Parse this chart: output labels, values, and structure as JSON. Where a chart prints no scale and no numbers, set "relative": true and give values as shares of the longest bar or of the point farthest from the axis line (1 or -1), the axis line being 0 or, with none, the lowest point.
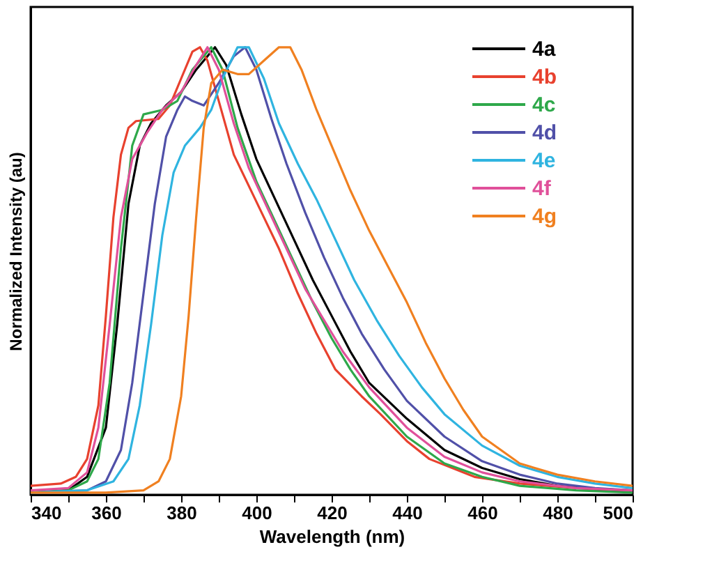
{
  "chart_data": {
    "type": "line",
    "relative": true,
    "xlabel": "Wavelength (nm)",
    "ylabel": "Normalized Intensity (au)",
    "xlim": [
      340,
      500
    ],
    "xticks": [
      340,
      {
        "value": 350,
        "label": null
      },
      360,
      {
        "value": 370,
        "label": null
      },
      380,
      {
        "value": 390,
        "label": null
      },
      400,
      {
        "value": 410,
        "label": null
      },
      420,
      {
        "value": 430,
        "label": null
      },
      440,
      {
        "value": 450,
        "label": null
      },
      460,
      {
        "value": 470,
        "label": null
      },
      480,
      {
        "value": 490,
        "label": null
      },
      500
    ],
    "legend": "top right",
    "marker": "none",
    "line_style": "solid",
    "grid": false,
    "series": [
      {
        "name": "4a",
        "color": "#000000",
        "x": [
          340,
          350,
          355,
          360,
          363,
          366,
          369,
          372,
          376,
          380,
          384,
          389,
          392,
          396,
          400,
          405,
          410,
          415,
          420,
          425,
          430,
          440,
          450,
          460,
          470,
          480,
          490,
          500
        ],
        "values": [
          0.005,
          0.01,
          0.04,
          0.15,
          0.38,
          0.65,
          0.78,
          0.83,
          0.87,
          0.9,
          0.95,
          1.0,
          0.96,
          0.85,
          0.75,
          0.66,
          0.57,
          0.48,
          0.4,
          0.32,
          0.25,
          0.17,
          0.1,
          0.06,
          0.035,
          0.02,
          0.012,
          0.008
        ]
      },
      {
        "name": "4b",
        "color": "#e8412e",
        "x": [
          340,
          348,
          352,
          355,
          358,
          360,
          362,
          364,
          366,
          368,
          374,
          377,
          380,
          383,
          385,
          387,
          390,
          394,
          398,
          402,
          406,
          411,
          416,
          421,
          428,
          433,
          440,
          446,
          458,
          470,
          485,
          500
        ],
        "values": [
          0.02,
          0.025,
          0.04,
          0.08,
          0.2,
          0.4,
          0.62,
          0.76,
          0.82,
          0.835,
          0.84,
          0.87,
          0.93,
          0.99,
          1.0,
          0.97,
          0.88,
          0.76,
          0.69,
          0.62,
          0.55,
          0.45,
          0.36,
          0.28,
          0.22,
          0.18,
          0.12,
          0.08,
          0.04,
          0.025,
          0.015,
          0.01
        ]
      },
      {
        "name": "4c",
        "color": "#2ea84a",
        "x": [
          340,
          350,
          355,
          358,
          361,
          364,
          367,
          370,
          375,
          379,
          383,
          388,
          391,
          395,
          400,
          405,
          410,
          415,
          420,
          425,
          430,
          440,
          450,
          460,
          470,
          485,
          500
        ],
        "values": [
          0.005,
          0.01,
          0.03,
          0.08,
          0.25,
          0.55,
          0.78,
          0.85,
          0.86,
          0.88,
          0.95,
          1.0,
          0.95,
          0.82,
          0.7,
          0.61,
          0.52,
          0.43,
          0.35,
          0.28,
          0.22,
          0.13,
          0.07,
          0.04,
          0.02,
          0.01,
          0.005
        ]
      },
      {
        "name": "4d",
        "color": "#5050a8",
        "x": [
          340,
          355,
          360,
          364,
          367,
          370,
          373,
          376,
          379,
          381,
          383,
          386,
          390,
          394,
          397,
          400,
          404,
          408,
          413,
          418,
          423,
          428,
          434,
          440,
          450,
          460,
          470,
          480,
          490,
          500
        ],
        "values": [
          0.005,
          0.01,
          0.03,
          0.1,
          0.25,
          0.45,
          0.65,
          0.8,
          0.86,
          0.89,
          0.88,
          0.87,
          0.92,
          0.98,
          1.0,
          0.95,
          0.84,
          0.74,
          0.63,
          0.53,
          0.44,
          0.36,
          0.28,
          0.21,
          0.13,
          0.075,
          0.045,
          0.025,
          0.015,
          0.01
        ]
      },
      {
        "name": "4e",
        "color": "#2fb4e0",
        "x": [
          340,
          355,
          362,
          366,
          369,
          372,
          375,
          378,
          381,
          385,
          388,
          391,
          395,
          398,
          402,
          406,
          411,
          416,
          421,
          426,
          432,
          438,
          444,
          450,
          460,
          470,
          480,
          490,
          500
        ],
        "values": [
          0.005,
          0.01,
          0.03,
          0.08,
          0.2,
          0.38,
          0.58,
          0.72,
          0.78,
          0.82,
          0.86,
          0.93,
          1.0,
          1.0,
          0.93,
          0.83,
          0.74,
          0.66,
          0.57,
          0.48,
          0.39,
          0.31,
          0.24,
          0.18,
          0.11,
          0.065,
          0.04,
          0.025,
          0.015
        ]
      },
      {
        "name": "4f",
        "color": "#e0509a",
        "x": [
          340,
          350,
          355,
          358,
          361,
          364,
          367,
          371,
          375,
          380,
          384,
          387,
          390,
          394,
          398,
          403,
          408,
          413,
          418,
          423,
          430,
          440,
          450,
          460,
          470,
          485,
          500
        ],
        "values": [
          0.01,
          0.015,
          0.05,
          0.15,
          0.38,
          0.62,
          0.75,
          0.81,
          0.86,
          0.9,
          0.96,
          1.0,
          0.95,
          0.83,
          0.73,
          0.64,
          0.55,
          0.46,
          0.39,
          0.32,
          0.24,
          0.15,
          0.085,
          0.05,
          0.03,
          0.015,
          0.01
        ]
      },
      {
        "name": "4g",
        "color": "#f08020",
        "x": [
          340,
          360,
          370,
          374,
          377,
          380,
          382,
          384,
          386,
          388,
          391,
          395,
          398,
          402,
          406,
          409,
          412,
          416,
          420,
          425,
          430,
          435,
          440,
          445,
          450,
          455,
          460,
          470,
          480,
          490,
          500
        ],
        "values": [
          0.005,
          0.005,
          0.01,
          0.03,
          0.08,
          0.22,
          0.4,
          0.62,
          0.82,
          0.92,
          0.95,
          0.94,
          0.94,
          0.97,
          1.0,
          1.0,
          0.95,
          0.86,
          0.78,
          0.68,
          0.59,
          0.51,
          0.43,
          0.34,
          0.26,
          0.19,
          0.13,
          0.07,
          0.045,
          0.03,
          0.02
        ]
      }
    ]
  }
}
